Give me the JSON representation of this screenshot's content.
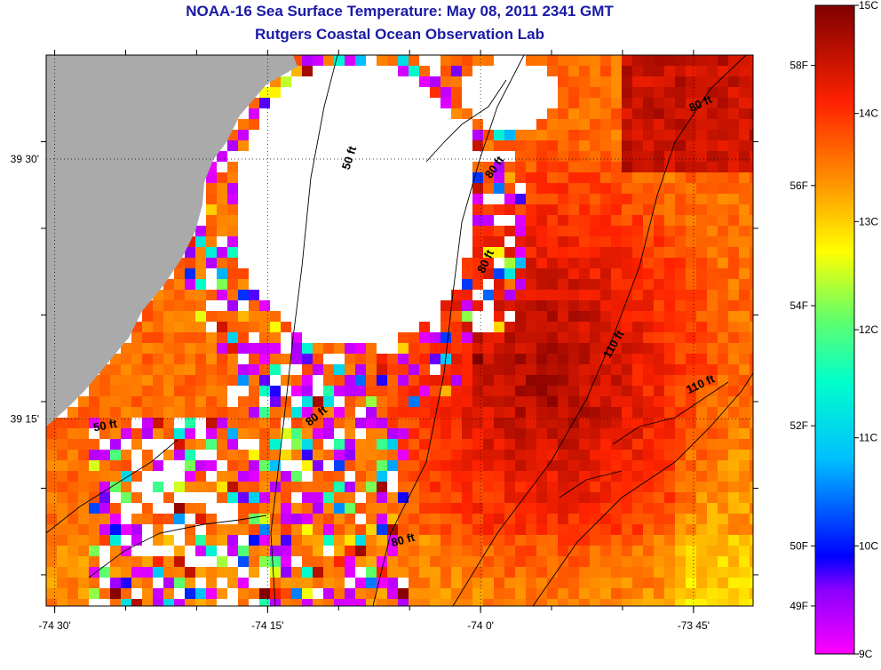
{
  "header": {
    "title": "NOAA-16 Sea Surface Temperature:  May 08, 2011 2341 GMT",
    "subtitle": "Rutgers Coastal Ocean Observation Lab"
  },
  "chart_data": {
    "type": "heatmap",
    "title": "NOAA-16 Sea Surface Temperature:  May 08, 2011 2341 GMT",
    "subtitle": "Rutgers Coastal Ocean Observation Lab",
    "x_ticks": [
      "-74 30'",
      "-74 15'",
      "-74 0'",
      "-73 45'"
    ],
    "x_tick_values": [
      -74.5,
      -74.25,
      -74.0,
      -73.75
    ],
    "y_ticks": [
      "39 30'",
      "39 15'"
    ],
    "y_tick_values": [
      39.5,
      39.25
    ],
    "xlim": [
      -74.51,
      -73.68
    ],
    "ylim": [
      39.07,
      39.6
    ],
    "grid": "dotted",
    "colorbar": {
      "celsius_ticks": [
        "15C",
        "14C",
        "13C",
        "12C",
        "11C",
        "10C",
        "9C"
      ],
      "celsius_values": [
        15,
        14,
        13,
        12,
        11,
        10,
        9
      ],
      "fahrenheit_ticks": [
        "58F",
        "56F",
        "54F",
        "52F",
        "50F",
        "49F"
      ],
      "fahrenheit_values": [
        58,
        56,
        54,
        52,
        50,
        49
      ],
      "range_c": [
        9,
        15
      ]
    },
    "contour_labels": [
      {
        "label": "50 ft",
        "lon": -74.15,
        "lat": 39.5
      },
      {
        "label": "80 ft",
        "lon": -73.98,
        "lat": 39.49
      },
      {
        "label": "80 ft",
        "lon": -73.74,
        "lat": 39.55
      },
      {
        "label": "80 ft",
        "lon": -73.99,
        "lat": 39.4
      },
      {
        "label": "110 ft",
        "lon": -73.84,
        "lat": 39.32
      },
      {
        "label": "110 ft",
        "lon": -73.74,
        "lat": 39.28
      },
      {
        "label": "50 ft",
        "lon": -74.44,
        "lat": 39.24
      },
      {
        "label": "80 ft",
        "lon": -74.19,
        "lat": 39.25
      },
      {
        "label": "80 ft",
        "lon": -74.09,
        "lat": 39.13
      }
    ],
    "legend": "colorbar right"
  }
}
